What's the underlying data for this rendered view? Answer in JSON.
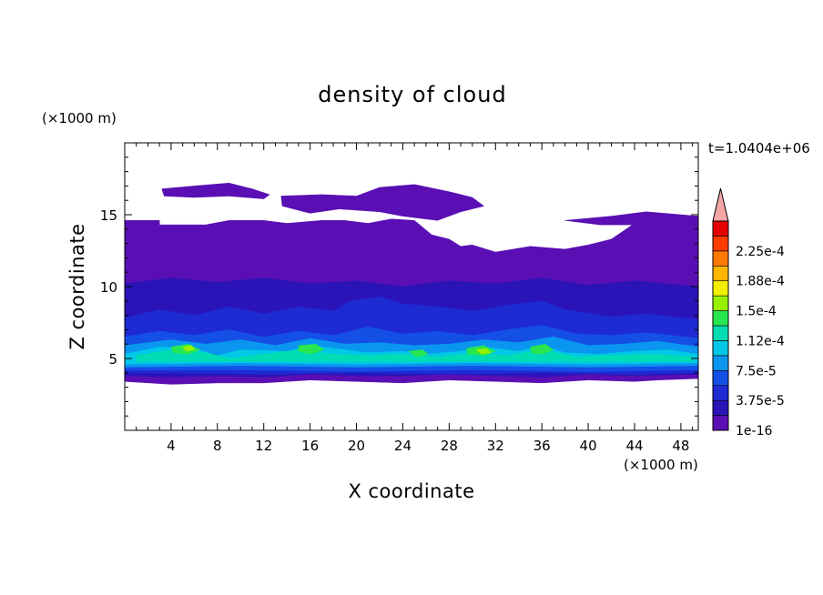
{
  "chart_data": {
    "type": "heatmap",
    "title": "density of cloud",
    "xlabel": "X coordinate",
    "ylabel": "Z coordinate",
    "x_unit": "(×1000 m)",
    "z_unit": "(×1000 m)",
    "time_label": "t=1.0404e+06",
    "xlim": [
      0,
      49.5
    ],
    "ylim": [
      0,
      20
    ],
    "x_ticks": [
      4,
      8,
      12,
      16,
      20,
      24,
      28,
      32,
      36,
      40,
      44,
      48
    ],
    "y_ticks": [
      5,
      10,
      15
    ],
    "colorbar": {
      "levels": [
        "1e-16",
        "3.75e-5",
        "7.5e-5",
        "1.12e-4",
        "1.5e-4",
        "1.88e-4",
        "2.25e-4"
      ],
      "colors": [
        "#5a0fb4",
        "#2a14b8",
        "#1e2ad2",
        "#1450e6",
        "#0a96f0",
        "#00c8e6",
        "#00dcb4",
        "#28e650",
        "#96f000",
        "#f0f000",
        "#ffb400",
        "#ff7800",
        "#ff3c00",
        "#e60000"
      ],
      "extend_color": "#f4a6a6"
    },
    "layers": [
      {
        "level_index": 0,
        "label": "cloud region (lowest level)",
        "polygons": [
          [
            [
              0,
              14.6
            ],
            [
              3,
              14.6
            ],
            [
              3,
              14.3
            ],
            [
              7,
              14.3
            ],
            [
              9,
              14.6
            ],
            [
              12,
              14.6
            ],
            [
              14,
              14.4
            ],
            [
              17,
              14.6
            ],
            [
              19,
              14.6
            ],
            [
              21,
              14.4
            ],
            [
              23,
              14.7
            ],
            [
              25,
              14.6
            ],
            [
              26.5,
              13.6
            ],
            [
              28,
              13.3
            ],
            [
              29,
              12.8
            ],
            [
              30,
              12.9
            ],
            [
              32,
              12.4
            ],
            [
              35,
              12.8
            ],
            [
              38,
              12.6
            ],
            [
              40,
              12.9
            ],
            [
              42,
              13.3
            ],
            [
              44,
              14.4
            ],
            [
              46,
              14.8
            ],
            [
              48,
              14.7
            ],
            [
              49.5,
              14.6
            ],
            [
              49.5,
              3.6
            ],
            [
              46,
              3.5
            ],
            [
              44,
              3.4
            ],
            [
              40,
              3.5
            ],
            [
              36,
              3.3
            ],
            [
              32,
              3.4
            ],
            [
              28,
              3.5
            ],
            [
              24,
              3.3
            ],
            [
              20,
              3.4
            ],
            [
              16,
              3.5
            ],
            [
              12,
              3.3
            ],
            [
              8,
              3.3
            ],
            [
              4,
              3.2
            ],
            [
              0,
              3.4
            ]
          ],
          [
            [
              3.2,
              16.8
            ],
            [
              6,
              17.0
            ],
            [
              9,
              17.2
            ],
            [
              11,
              16.8
            ],
            [
              12.5,
              16.4
            ],
            [
              12,
              16.1
            ],
            [
              9,
              16.3
            ],
            [
              6,
              16.2
            ],
            [
              3.4,
              16.3
            ]
          ],
          [
            [
              13.5,
              16.3
            ],
            [
              17,
              16.4
            ],
            [
              20,
              16.3
            ],
            [
              22,
              16.9
            ],
            [
              25,
              17.1
            ],
            [
              28,
              16.6
            ],
            [
              30,
              16.2
            ],
            [
              31,
              15.6
            ],
            [
              29,
              15.2
            ],
            [
              27,
              14.6
            ],
            [
              24,
              14.9
            ],
            [
              22,
              15.2
            ],
            [
              18.5,
              15.4
            ],
            [
              16,
              15.1
            ],
            [
              13.6,
              15.6
            ]
          ],
          [
            [
              38,
              14.6
            ],
            [
              42,
              14.9
            ],
            [
              45,
              15.2
            ],
            [
              49.5,
              14.9
            ],
            [
              49.5,
              14.2
            ],
            [
              45,
              14.3
            ],
            [
              41,
              14.3
            ]
          ],
          [
            [
              12,
              13.8
            ],
            [
              15,
              14.0
            ],
            [
              17,
              13.8
            ],
            [
              16,
              13.2
            ],
            [
              13,
              13.1
            ]
          ]
        ]
      },
      {
        "level_index": 1,
        "label": "deep blue band",
        "polygons": [
          [
            [
              0,
              10.2
            ],
            [
              4,
              10.6
            ],
            [
              8,
              10.3
            ],
            [
              12,
              10.6
            ],
            [
              16,
              10.2
            ],
            [
              20,
              10.4
            ],
            [
              24,
              10.0
            ],
            [
              28,
              10.4
            ],
            [
              32,
              10.2
            ],
            [
              36,
              10.6
            ],
            [
              40,
              10.1
            ],
            [
              44,
              10.4
            ],
            [
              49.5,
              10.0
            ],
            [
              49.5,
              3.9
            ],
            [
              44,
              3.8
            ],
            [
              40,
              3.9
            ],
            [
              36,
              3.7
            ],
            [
              32,
              3.8
            ],
            [
              28,
              3.9
            ],
            [
              24,
              3.8
            ],
            [
              20,
              3.8
            ],
            [
              16,
              3.9
            ],
            [
              12,
              3.7
            ],
            [
              8,
              3.8
            ],
            [
              4,
              3.7
            ],
            [
              0,
              3.8
            ]
          ]
        ]
      },
      {
        "level_index": 2,
        "label": "upper convective band",
        "polygons": [
          [
            [
              0,
              7.8
            ],
            [
              3,
              8.4
            ],
            [
              6,
              8.0
            ],
            [
              9,
              8.6
            ],
            [
              12,
              8.1
            ],
            [
              15,
              8.6
            ],
            [
              18,
              8.3
            ],
            [
              19.5,
              9.0
            ],
            [
              22,
              9.3
            ],
            [
              24,
              8.8
            ],
            [
              27,
              8.6
            ],
            [
              30,
              8.3
            ],
            [
              33,
              8.7
            ],
            [
              36,
              9.0
            ],
            [
              38,
              8.4
            ],
            [
              42,
              7.9
            ],
            [
              45,
              8.1
            ],
            [
              49.5,
              7.7
            ],
            [
              49.5,
              4.0
            ],
            [
              44,
              3.9
            ],
            [
              36,
              4.0
            ],
            [
              28,
              3.9
            ],
            [
              20,
              4.0
            ],
            [
              12,
              3.9
            ],
            [
              4,
              4.0
            ],
            [
              0,
              4.0
            ]
          ]
        ]
      },
      {
        "level_index": 3,
        "label": "blue band",
        "polygons": [
          [
            [
              0,
              6.5
            ],
            [
              3,
              6.9
            ],
            [
              6,
              6.6
            ],
            [
              9,
              7.0
            ],
            [
              12,
              6.5
            ],
            [
              15,
              6.9
            ],
            [
              18,
              6.6
            ],
            [
              21,
              7.2
            ],
            [
              24,
              6.7
            ],
            [
              27,
              6.9
            ],
            [
              30,
              6.6
            ],
            [
              33,
              7.0
            ],
            [
              36,
              7.3
            ],
            [
              39,
              6.7
            ],
            [
              42,
              6.6
            ],
            [
              45,
              6.8
            ],
            [
              49.5,
              6.4
            ],
            [
              49.5,
              4.2
            ],
            [
              40,
              4.1
            ],
            [
              30,
              4.2
            ],
            [
              20,
              4.1
            ],
            [
              10,
              4.2
            ],
            [
              0,
              4.2
            ]
          ]
        ]
      },
      {
        "level_index": 4,
        "label": "light blue band",
        "polygons": [
          [
            [
              0,
              5.9
            ],
            [
              4,
              6.3
            ],
            [
              7,
              6.0
            ],
            [
              10,
              6.3
            ],
            [
              13,
              5.9
            ],
            [
              16,
              6.4
            ],
            [
              19,
              6.0
            ],
            [
              22,
              6.1
            ],
            [
              25,
              5.9
            ],
            [
              28,
              6.0
            ],
            [
              31,
              6.3
            ],
            [
              34,
              6.1
            ],
            [
              37,
              6.5
            ],
            [
              40,
              5.9
            ],
            [
              43,
              6.0
            ],
            [
              46,
              6.2
            ],
            [
              49.5,
              5.8
            ],
            [
              49.5,
              4.5
            ],
            [
              40,
              4.4
            ],
            [
              30,
              4.5
            ],
            [
              20,
              4.4
            ],
            [
              10,
              4.5
            ],
            [
              0,
              4.4
            ]
          ]
        ]
      },
      {
        "level_index": 5,
        "label": "cyan core",
        "polygons": [
          [
            [
              0,
              5.3
            ],
            [
              3,
              5.8
            ],
            [
              6,
              5.7
            ],
            [
              8,
              5.2
            ],
            [
              10,
              5.6
            ],
            [
              14,
              5.5
            ],
            [
              16,
              5.9
            ],
            [
              19,
              5.6
            ],
            [
              21,
              5.4
            ],
            [
              24,
              5.5
            ],
            [
              26,
              5.3
            ],
            [
              29,
              5.5
            ],
            [
              31,
              5.8
            ],
            [
              34,
              5.5
            ],
            [
              36,
              5.9
            ],
            [
              38,
              5.4
            ],
            [
              41,
              5.3
            ],
            [
              44,
              5.5
            ],
            [
              47,
              5.6
            ],
            [
              49.5,
              5.3
            ],
            [
              49.5,
              4.7
            ],
            [
              40,
              4.6
            ],
            [
              30,
              4.7
            ],
            [
              20,
              4.6
            ],
            [
              10,
              4.7
            ],
            [
              0,
              4.6
            ]
          ]
        ]
      },
      {
        "level_index": 6,
        "label": "teal core",
        "polygons": [
          [
            [
              1,
              5.2
            ],
            [
              4,
              5.6
            ],
            [
              7,
              5.4
            ],
            [
              9,
              5.0
            ],
            [
              12,
              5.3
            ],
            [
              15,
              5.6
            ],
            [
              18,
              5.3
            ],
            [
              21,
              5.2
            ],
            [
              24,
              5.3
            ],
            [
              27,
              5.1
            ],
            [
              30,
              5.4
            ],
            [
              33,
              5.2
            ],
            [
              36,
              5.6
            ],
            [
              39,
              5.1
            ],
            [
              42,
              5.2
            ],
            [
              46,
              5.3
            ],
            [
              49,
              5.1
            ],
            [
              49,
              4.8
            ],
            [
              40,
              4.8
            ],
            [
              30,
              4.8
            ],
            [
              20,
              4.8
            ],
            [
              10,
              4.8
            ],
            [
              1,
              4.8
            ]
          ]
        ]
      },
      {
        "level_index": 7,
        "label": "green spots",
        "polygons": [
          [
            [
              4,
              5.8
            ],
            [
              5.5,
              6.0
            ],
            [
              6.5,
              5.6
            ],
            [
              5.5,
              5.3
            ],
            [
              4.2,
              5.4
            ]
          ],
          [
            [
              15,
              5.9
            ],
            [
              16.5,
              6.0
            ],
            [
              17.2,
              5.6
            ],
            [
              16,
              5.3
            ],
            [
              15,
              5.5
            ]
          ],
          [
            [
              29.5,
              5.7
            ],
            [
              31,
              5.9
            ],
            [
              32,
              5.5
            ],
            [
              31,
              5.2
            ],
            [
              29.6,
              5.3
            ]
          ],
          [
            [
              35,
              5.8
            ],
            [
              36.3,
              6.0
            ],
            [
              37,
              5.6
            ],
            [
              36,
              5.3
            ],
            [
              35.1,
              5.4
            ]
          ],
          [
            [
              24.5,
              5.5
            ],
            [
              25.7,
              5.6
            ],
            [
              26.2,
              5.3
            ],
            [
              25.2,
              5.1
            ]
          ]
        ]
      },
      {
        "level_index": 8,
        "label": "yellow-green spots",
        "polygons": [
          [
            [
              30.3,
              5.6
            ],
            [
              31.2,
              5.7
            ],
            [
              31.6,
              5.4
            ],
            [
              30.8,
              5.3
            ]
          ],
          [
            [
              5.0,
              5.8
            ],
            [
              5.8,
              5.9
            ],
            [
              6.0,
              5.6
            ],
            [
              5.3,
              5.5
            ]
          ]
        ]
      }
    ]
  }
}
